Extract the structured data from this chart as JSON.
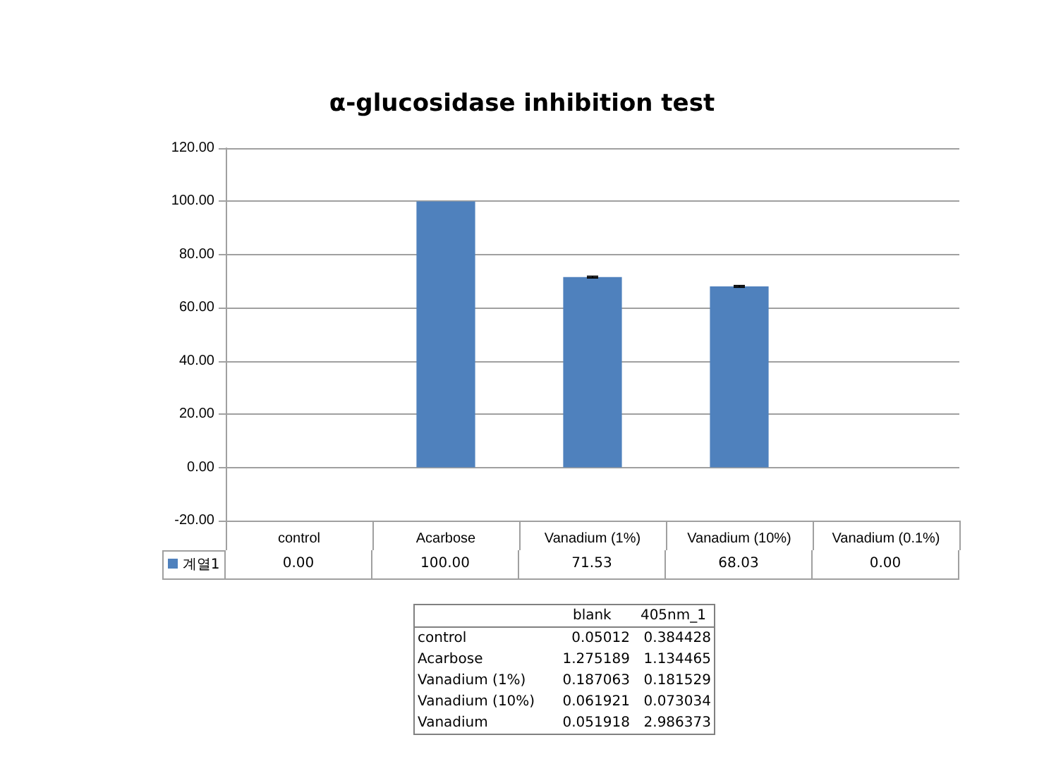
{
  "chart_data": {
    "type": "bar",
    "title": "α-glucosidase inhibition test",
    "categories": [
      "control",
      "Acarbose",
      "Vanadium (1%)",
      "Vanadium (10%)",
      "Vanadium (0.1%)"
    ],
    "series": [
      {
        "name": "계열1",
        "color": "#4f81bd",
        "values": [
          0,
          100,
          71.53,
          68.03,
          0
        ],
        "errors": [
          null,
          null,
          0.3,
          0.3,
          null
        ],
        "value_labels": [
          "0.00",
          "100.00",
          "71.53",
          "68.03",
          "0.00"
        ]
      }
    ],
    "ylim": [
      -20,
      120
    ],
    "yticks": [
      {
        "value": -20,
        "label": "-20.00"
      },
      {
        "value": 0,
        "label": "0.00"
      },
      {
        "value": 20,
        "label": "20.00"
      },
      {
        "value": 40,
        "label": "40.00"
      },
      {
        "value": 60,
        "label": "60.00"
      },
      {
        "value": 80,
        "label": "80.00"
      },
      {
        "value": 100,
        "label": "100.00"
      },
      {
        "value": 120,
        "label": "120.00"
      }
    ],
    "grid": "y",
    "legend": "bottom",
    "annotations": [
      "blank",
      "405nm_1",
      "control",
      "0.05012",
      "0.384428",
      "Acarbose",
      "1.275189",
      "1.134465",
      "Vanadium (1%)",
      "0.187063",
      "0.181529",
      "Vanadium (10%)",
      "0.061921",
      "0.073034",
      "Vanadium",
      "0.051918",
      "2.986373"
    ]
  }
}
